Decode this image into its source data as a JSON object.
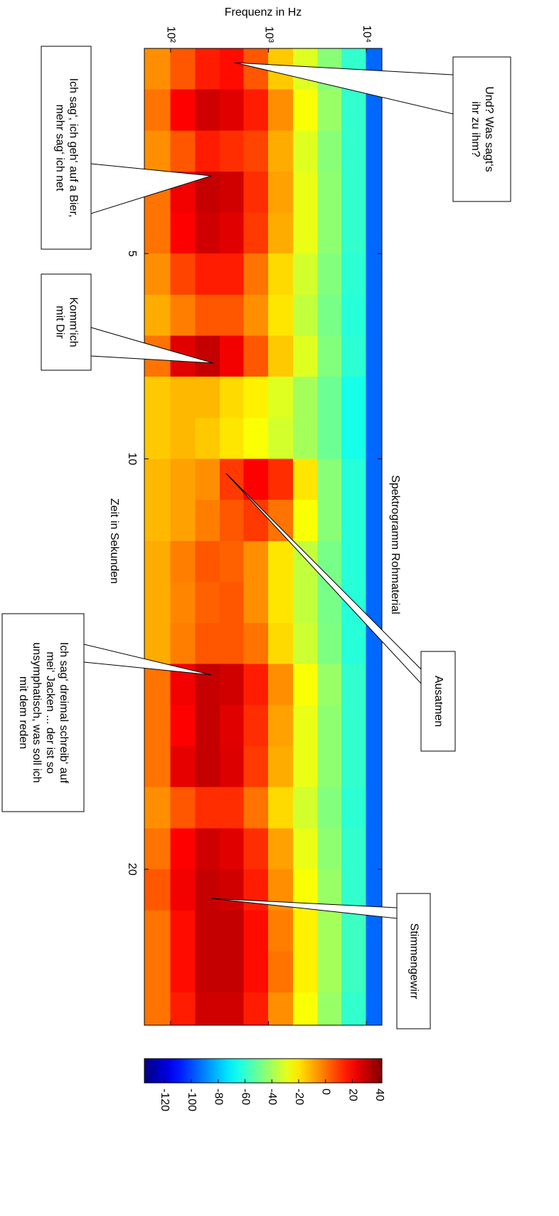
{
  "chart_data": {
    "type": "heatmap",
    "title": "Spektrogramm Rohmaterial",
    "xlabel": "Zeit in Sekunden",
    "ylabel": "Frequenz in Hz",
    "xlim": [
      0,
      23.8
    ],
    "xticks": [
      5,
      10,
      20
    ],
    "ylim": [
      54,
      14400
    ],
    "ylog": true,
    "yticks": [
      {
        "value": 100,
        "label": "10²"
      },
      {
        "value": 1000,
        "label": "10³"
      },
      {
        "value": 10000,
        "label": "10⁴"
      }
    ],
    "colormap": "jet",
    "clim": [
      -135,
      42
    ],
    "cticks": [
      -120,
      -100,
      -80,
      -60,
      -40,
      -20,
      0,
      20,
      40
    ],
    "x_edges": [
      0,
      1,
      2,
      3,
      4,
      5,
      6,
      7,
      8,
      9,
      10,
      11,
      12,
      13,
      14,
      15,
      16,
      17,
      18,
      19,
      20,
      21,
      22,
      23,
      23.8
    ],
    "y_edges": [
      54,
      100,
      180,
      320,
      560,
      1000,
      1800,
      3200,
      5600,
      10000,
      14400
    ],
    "z": [
      [
        -5,
        5,
        15,
        18,
        5,
        -15,
        -30,
        -45,
        -60,
        -95
      ],
      [
        0,
        20,
        28,
        25,
        15,
        -5,
        -25,
        -42,
        -60,
        -95
      ],
      [
        -5,
        5,
        15,
        12,
        8,
        -10,
        -30,
        -45,
        -60,
        -95
      ],
      [
        0,
        22,
        30,
        28,
        12,
        -8,
        -28,
        -44,
        -60,
        -95
      ],
      [
        0,
        20,
        28,
        25,
        10,
        -10,
        -28,
        -44,
        -60,
        -95
      ],
      [
        -5,
        8,
        15,
        15,
        0,
        -18,
        -32,
        -46,
        -61,
        -95
      ],
      [
        -10,
        -2,
        5,
        5,
        -5,
        -20,
        -35,
        -48,
        -62,
        -95
      ],
      [
        0,
        25,
        30,
        22,
        5,
        -15,
        -30,
        -46,
        -61,
        -95
      ],
      [
        -15,
        -12,
        -12,
        -18,
        -22,
        -30,
        -40,
        -50,
        -65,
        -95
      ],
      [
        -15,
        -12,
        -15,
        -20,
        -25,
        -32,
        -40,
        -50,
        -65,
        -95
      ],
      [
        -12,
        -8,
        -5,
        10,
        20,
        12,
        -20,
        -45,
        -62,
        -95
      ],
      [
        -12,
        -8,
        -2,
        5,
        10,
        0,
        -25,
        -45,
        -62,
        -95
      ],
      [
        -10,
        -2,
        5,
        3,
        -5,
        -20,
        -35,
        -48,
        -62,
        -95
      ],
      [
        -10,
        -3,
        3,
        5,
        -5,
        -20,
        -35,
        -48,
        -62,
        -95
      ],
      [
        -10,
        -2,
        5,
        5,
        0,
        -18,
        -33,
        -47,
        -62,
        -95
      ],
      [
        0,
        22,
        30,
        28,
        15,
        -5,
        -25,
        -42,
        -60,
        -95
      ],
      [
        0,
        20,
        30,
        25,
        12,
        -8,
        -28,
        -44,
        -60,
        -95
      ],
      [
        0,
        24,
        30,
        26,
        10,
        -10,
        -28,
        -44,
        -60,
        -95
      ],
      [
        -5,
        5,
        12,
        12,
        0,
        -18,
        -32,
        -46,
        -61,
        -95
      ],
      [
        0,
        20,
        28,
        25,
        12,
        -8,
        -28,
        -44,
        -60,
        -95
      ],
      [
        5,
        22,
        30,
        28,
        15,
        -5,
        -25,
        -42,
        -60,
        -95
      ],
      [
        0,
        18,
        30,
        30,
        18,
        -2,
        -22,
        -40,
        -58,
        -95
      ],
      [
        0,
        18,
        30,
        30,
        18,
        0,
        -22,
        -40,
        -58,
        -95
      ],
      [
        0,
        15,
        28,
        28,
        15,
        -5,
        -25,
        -42,
        -60,
        -95
      ]
    ],
    "annotations": [
      {
        "lines": [
          "Und? Was sagt‘s",
          "ihr zu ihm?"
        ]
      },
      {
        "lines": [
          "Ich sag‘, ich geh‘ auf a Bier,",
          "mehr sag‘ ich net"
        ]
      },
      {
        "lines": [
          "Komm‘ich",
          "mit Dir"
        ]
      },
      {
        "lines": [
          "Ausatmen"
        ]
      },
      {
        "lines": [
          "Ich sag‘ dreimal schreib‘ auf",
          "mei‘ Jacken ... der ist so",
          "unsymphatisch, was soll ich",
          "mit dem reden"
        ]
      },
      {
        "lines": [
          "Stimmengewirr"
        ]
      }
    ]
  }
}
